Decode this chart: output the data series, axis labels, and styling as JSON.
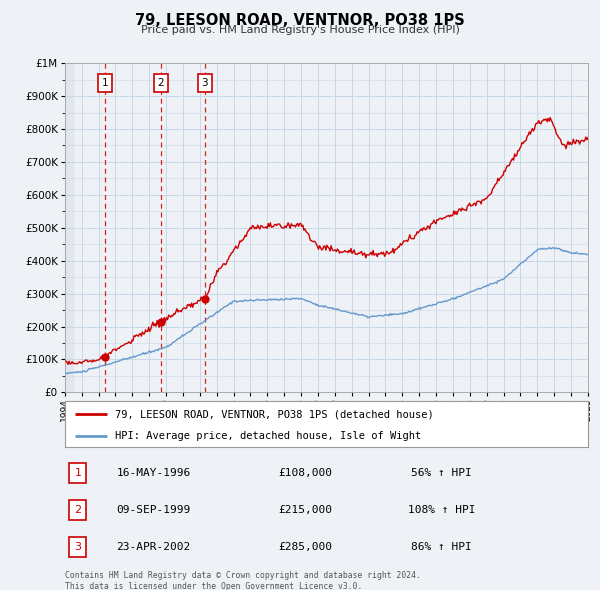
{
  "title": "79, LEESON ROAD, VENTNOR, PO38 1PS",
  "subtitle": "Price paid vs. HM Land Registry's House Price Index (HPI)",
  "hpi_label": "HPI: Average price, detached house, Isle of Wight",
  "property_label": "79, LEESON ROAD, VENTNOR, PO38 1PS (detached house)",
  "transactions": [
    {
      "num": 1,
      "date": "16-MAY-1996",
      "price": 108000,
      "pct": "56%",
      "direction": "↑",
      "year": 1996.37
    },
    {
      "num": 2,
      "date": "09-SEP-1999",
      "price": 215000,
      "pct": "108%",
      "direction": "↑",
      "year": 1999.69
    },
    {
      "num": 3,
      "date": "23-APR-2002",
      "price": 285000,
      "pct": "86%",
      "direction": "↑",
      "year": 2002.3
    }
  ],
  "footer": "Contains HM Land Registry data © Crown copyright and database right 2024.\nThis data is licensed under the Open Government Licence v3.0.",
  "property_color": "#cc0000",
  "hpi_color": "#6699cc",
  "background_color": "#eef2f7",
  "plot_bg_color": "#eef2f7",
  "grid_color": "#c8d8e8",
  "ylim": [
    0,
    1000000
  ],
  "yticks": [
    0,
    100000,
    200000,
    300000,
    400000,
    500000,
    600000,
    700000,
    800000,
    900000,
    1000000
  ],
  "xmin": 1994,
  "xmax": 2025
}
